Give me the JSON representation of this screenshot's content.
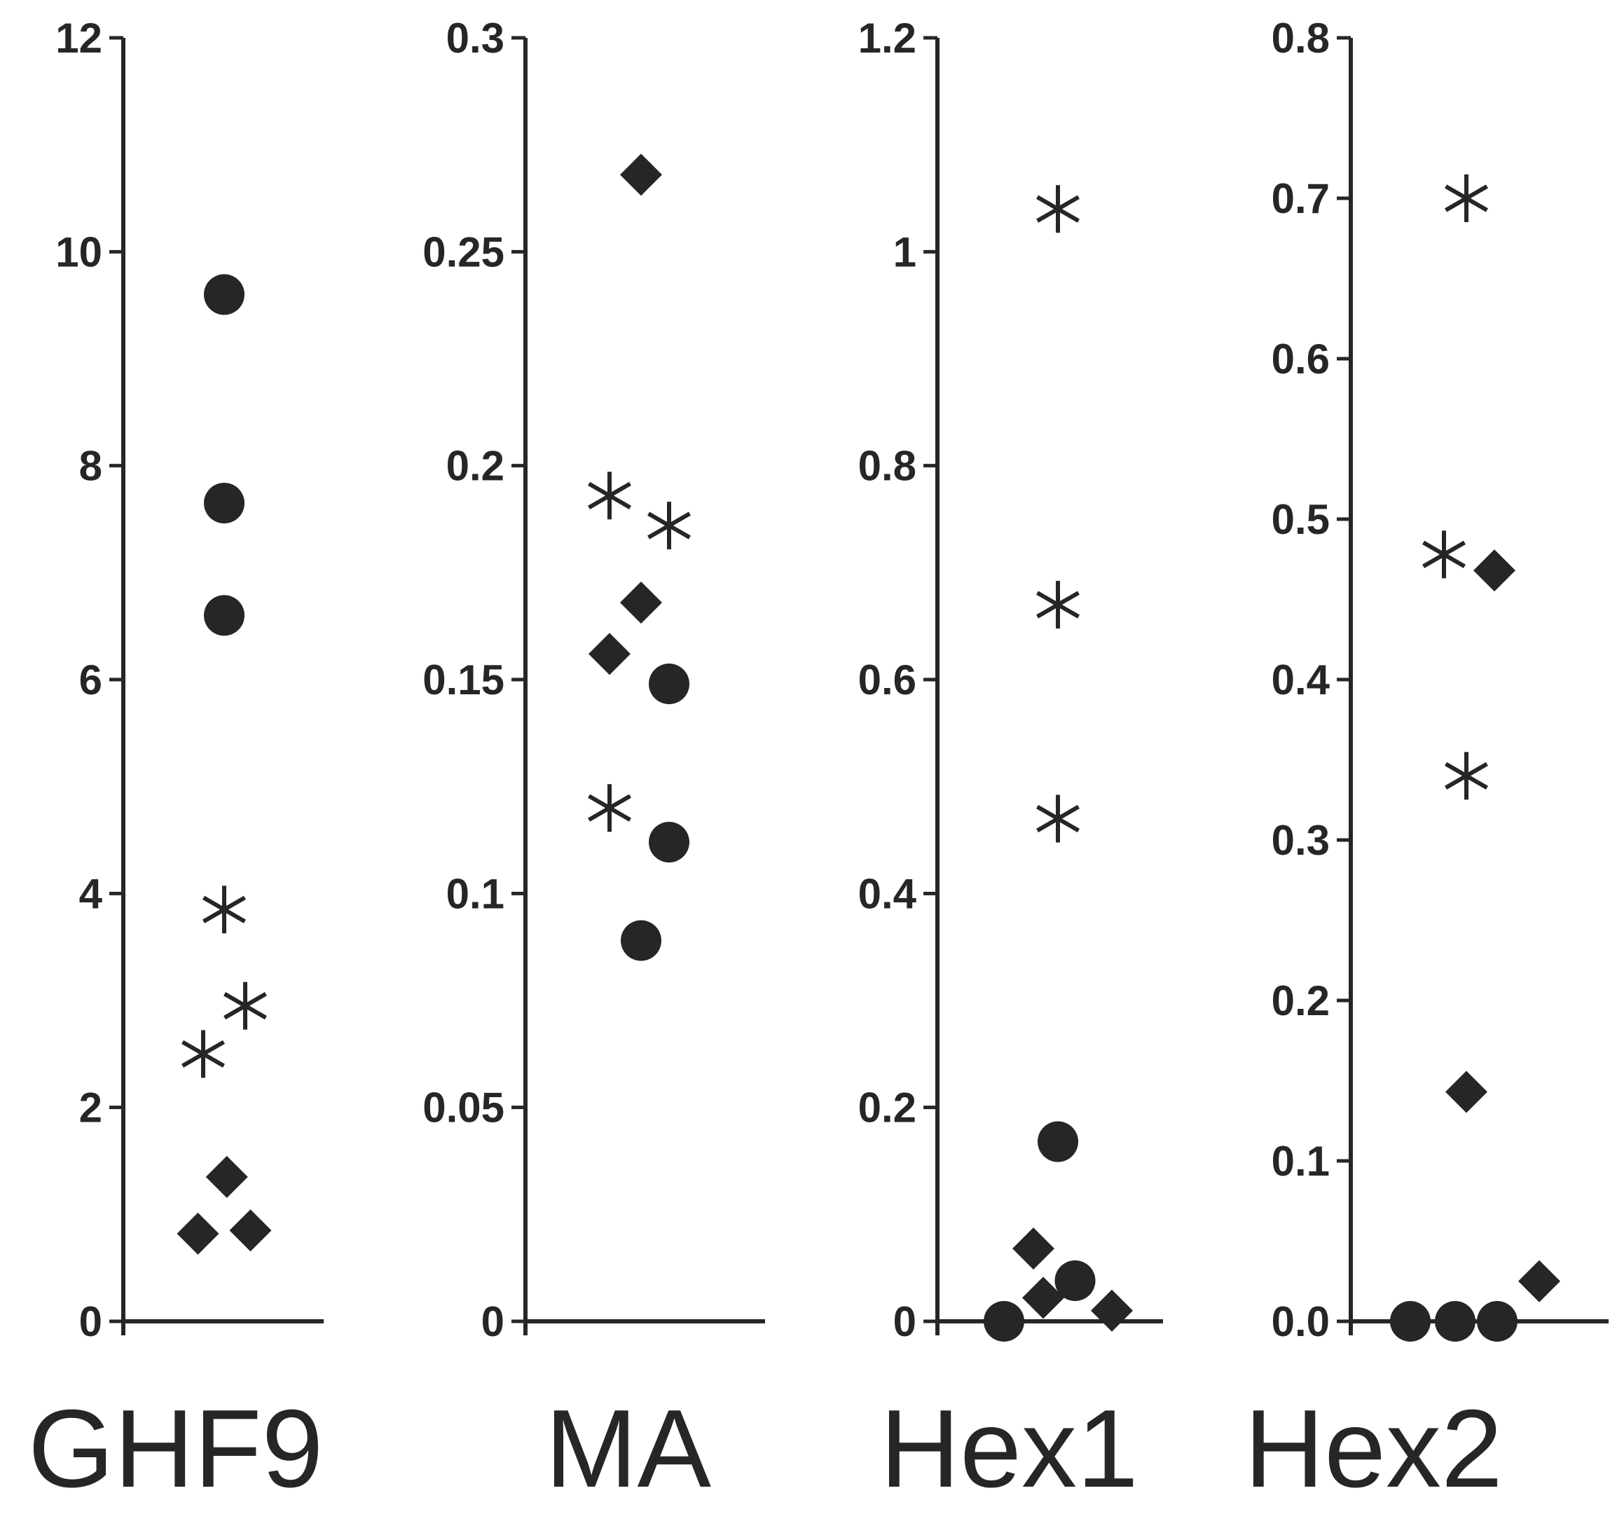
{
  "chart_data": [
    {
      "type": "scatter",
      "title": "GHF9",
      "ylim": [
        0,
        12
      ],
      "ticks": [
        "0",
        "2",
        "4",
        "6",
        "8",
        "10",
        "12"
      ],
      "series": [
        {
          "marker": "circle",
          "points": [
            {
              "x": 0,
              "y": 9.6
            },
            {
              "x": 0,
              "y": 7.65
            },
            {
              "x": 0,
              "y": 6.6
            }
          ]
        },
        {
          "marker": "star",
          "points": [
            {
              "x": 0,
              "y": 3.85
            },
            {
              "x": 0.4,
              "y": 2.95
            },
            {
              "x": -0.4,
              "y": 2.5
            }
          ]
        },
        {
          "marker": "diamond",
          "points": [
            {
              "x": 0.05,
              "y": 1.35
            },
            {
              "x": -0.5,
              "y": 0.82
            },
            {
              "x": 0.5,
              "y": 0.85
            }
          ]
        }
      ]
    },
    {
      "type": "scatter",
      "title": "MA",
      "ylim": [
        0,
        0.3
      ],
      "ticks": [
        "0",
        "0.05",
        "0.1",
        "0.15",
        "0.2",
        "0.25",
        "0.3"
      ],
      "series": [
        {
          "marker": "diamond",
          "points": [
            {
              "x": 0,
              "y": 0.268
            },
            {
              "x": 0,
              "y": 0.168
            },
            {
              "x": -0.45,
              "y": 0.156
            }
          ]
        },
        {
          "marker": "star",
          "points": [
            {
              "x": -0.45,
              "y": 0.193
            },
            {
              "x": 0.4,
              "y": 0.186
            },
            {
              "x": -0.45,
              "y": 0.12
            }
          ]
        },
        {
          "marker": "circle",
          "points": [
            {
              "x": 0.4,
              "y": 0.149
            },
            {
              "x": 0.4,
              "y": 0.112
            },
            {
              "x": 0,
              "y": 0.089
            }
          ]
        }
      ]
    },
    {
      "type": "scatter",
      "title": "Hex1",
      "ylim": [
        0,
        1.2
      ],
      "ticks": [
        "0",
        "0.2",
        "0.4",
        "0.6",
        "0.8",
        "1",
        "1.2"
      ],
      "series": [
        {
          "marker": "star",
          "points": [
            {
              "x": 0,
              "y": 1.04
            },
            {
              "x": 0,
              "y": 0.67
            },
            {
              "x": 0,
              "y": 0.47
            }
          ]
        },
        {
          "marker": "circle",
          "points": [
            {
              "x": 0,
              "y": 0.168
            },
            {
              "x": 0.35,
              "y": 0.038
            },
            {
              "x": -1.1,
              "y": 0
            }
          ]
        },
        {
          "marker": "diamond",
          "points": [
            {
              "x": -0.5,
              "y": 0.068
            },
            {
              "x": -0.3,
              "y": 0.022
            },
            {
              "x": 1.1,
              "y": 0.01
            }
          ]
        }
      ]
    },
    {
      "type": "scatter",
      "title": "Hex2",
      "ylim": [
        0,
        0.8
      ],
      "ticks": [
        "0.0",
        "0.1",
        "0.2",
        "0.3",
        "0.4",
        "0.5",
        "0.6",
        "0.7",
        "0.8"
      ],
      "series": [
        {
          "marker": "star",
          "points": [
            {
              "x": 0,
              "y": 0.7
            },
            {
              "x": -0.4,
              "y": 0.478
            },
            {
              "x": 0,
              "y": 0.34
            }
          ]
        },
        {
          "marker": "diamond",
          "points": [
            {
              "x": 0.5,
              "y": 0.468
            },
            {
              "x": 0,
              "y": 0.143
            },
            {
              "x": 1.3,
              "y": 0.025
            }
          ]
        },
        {
          "marker": "circle",
          "points": [
            {
              "x": -1,
              "y": 0
            },
            {
              "x": -0.2,
              "y": 0
            },
            {
              "x": 0.55,
              "y": 0
            }
          ]
        }
      ]
    }
  ]
}
